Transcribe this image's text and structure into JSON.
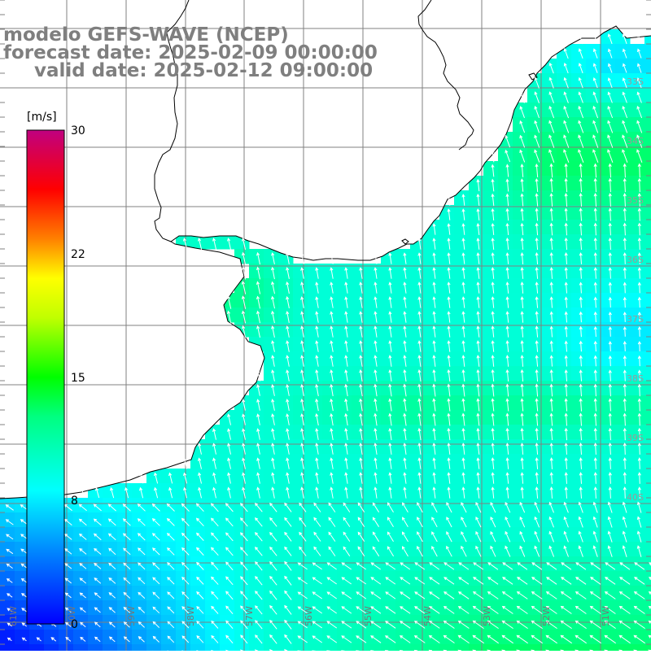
{
  "header": {
    "model": "modelo GEFS-WAVE (NCEP)",
    "forecast_date": "forecast date: 2025-02-09 00:00:00",
    "valid_date": "valid date: 2025-02-12 09:00:00"
  },
  "colorbar": {
    "unit": "[m/s]",
    "ticks": [
      {
        "value": 30,
        "label": "30"
      },
      {
        "value": 22,
        "label": "22"
      },
      {
        "value": 15,
        "label": "15"
      },
      {
        "value": 8,
        "label": "8"
      },
      {
        "value": 0,
        "label": "0"
      }
    ],
    "range": [
      0,
      30
    ],
    "colors": [
      "#0000ff",
      "#00a0ff",
      "#00ffff",
      "#00ff00",
      "#ffff00",
      "#ff8000",
      "#ff0000",
      "#c00080"
    ]
  },
  "map": {
    "lon_labels": [
      "61W",
      "60W",
      "59W",
      "58W",
      "57W",
      "56W",
      "55W",
      "54W",
      "53W",
      "52W",
      "51W"
    ],
    "lat_labels": [
      "33S",
      "34S",
      "35S",
      "36S",
      "37S",
      "38S",
      "39S",
      "40S"
    ],
    "field_variable": "wind speed",
    "vector_variable": "wind direction",
    "land_color": "#ffffff",
    "grid_color": "#808080",
    "coast_color": "#000000"
  }
}
